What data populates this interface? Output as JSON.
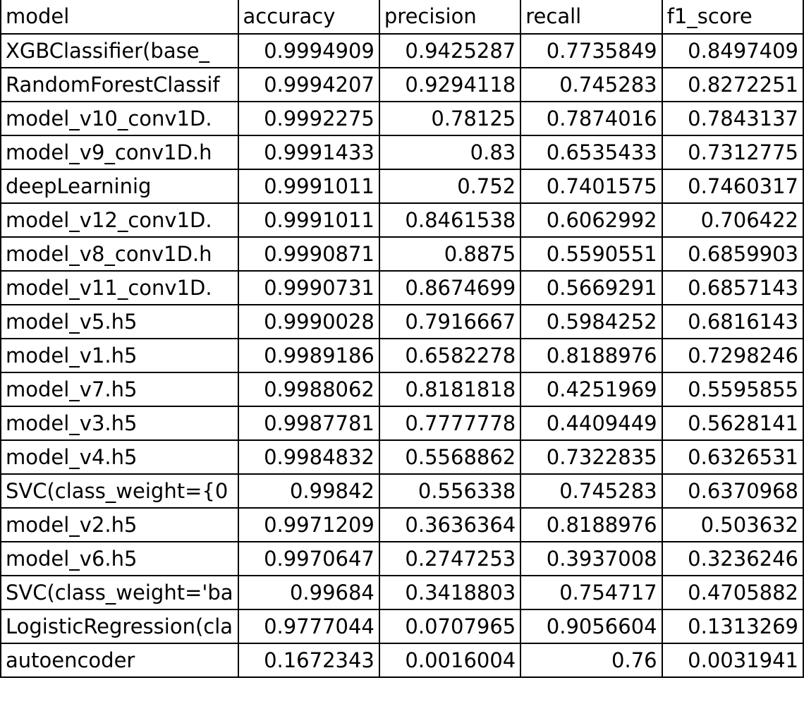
{
  "table": {
    "headers": [
      "model",
      "accuracy",
      "precision",
      "recall",
      "f1_score"
    ],
    "rows": [
      [
        "XGBClassifier(base_",
        "0.9994909",
        "0.9425287",
        "0.7735849",
        "0.8497409"
      ],
      [
        "RandomForestClassif",
        "0.9994207",
        "0.9294118",
        "0.745283",
        "0.8272251"
      ],
      [
        "model_v10_conv1D.",
        "0.9992275",
        "0.78125",
        "0.7874016",
        "0.7843137"
      ],
      [
        "model_v9_conv1D.h",
        "0.9991433",
        "0.83",
        "0.6535433",
        "0.7312775"
      ],
      [
        "deepLearninig",
        "0.9991011",
        "0.752",
        "0.7401575",
        "0.7460317"
      ],
      [
        "model_v12_conv1D.",
        "0.9991011",
        "0.8461538",
        "0.6062992",
        "0.706422"
      ],
      [
        "model_v8_conv1D.h",
        "0.9990871",
        "0.8875",
        "0.5590551",
        "0.6859903"
      ],
      [
        "model_v11_conv1D.",
        "0.9990731",
        "0.8674699",
        "0.5669291",
        "0.6857143"
      ],
      [
        "model_v5.h5",
        "0.9990028",
        "0.7916667",
        "0.5984252",
        "0.6816143"
      ],
      [
        "model_v1.h5",
        "0.9989186",
        "0.6582278",
        "0.8188976",
        "0.7298246"
      ],
      [
        "model_v7.h5",
        "0.9988062",
        "0.8181818",
        "0.4251969",
        "0.5595855"
      ],
      [
        "model_v3.h5",
        "0.9987781",
        "0.7777778",
        "0.4409449",
        "0.5628141"
      ],
      [
        "model_v4.h5",
        "0.9984832",
        "0.5568862",
        "0.7322835",
        "0.6326531"
      ],
      [
        "SVC(class_weight={0",
        "0.99842",
        "0.556338",
        "0.745283",
        "0.6370968"
      ],
      [
        "model_v2.h5",
        "0.9971209",
        "0.3636364",
        "0.8188976",
        "0.503632"
      ],
      [
        "model_v6.h5",
        "0.9970647",
        "0.2747253",
        "0.3937008",
        "0.3236246"
      ],
      [
        "SVC(class_weight='ba",
        "0.99684",
        "0.3418803",
        "0.754717",
        "0.4705882"
      ],
      [
        "LogisticRegression(cla",
        "0.9777044",
        "0.0707965",
        "0.9056604",
        "0.1313269"
      ],
      [
        "autoencoder",
        "0.1672343",
        "0.0016004",
        "0.76",
        "0.0031941"
      ]
    ]
  }
}
